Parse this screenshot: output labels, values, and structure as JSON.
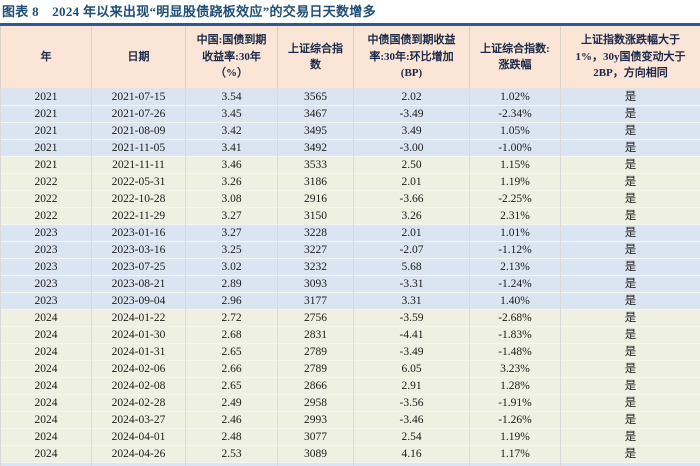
{
  "title": "图表 8　2024 年以来出现“明显股债跷板效应”的交易日天数增多",
  "colors": {
    "title_text": "#1F4E79",
    "divider_line": "#2E5A94",
    "header_bg": "#FBE5D6",
    "band_blue": "#DBE5F1",
    "band_green": "#EEF0E1"
  },
  "table": {
    "headers": [
      "年",
      "日期",
      "中国:国债到期\n收益率:30年\n（%）",
      "上证综合指\n数",
      "中债国债到期收益\n率:30年:环比增加\n(BP)",
      "上证综合指数:\n涨跌幅",
      "上证指数涨跌幅大于\n1%，30y国债变动大于\n2BP，方向相同"
    ],
    "rows": [
      {
        "band": "blue",
        "values": [
          "2021",
          "2021-07-15",
          "3.54",
          "3565",
          "2.02",
          "1.02%",
          "是"
        ]
      },
      {
        "band": "blue",
        "values": [
          "2021",
          "2021-07-26",
          "3.45",
          "3467",
          "-3.49",
          "-2.34%",
          "是"
        ]
      },
      {
        "band": "blue",
        "values": [
          "2021",
          "2021-08-09",
          "3.42",
          "3495",
          "3.49",
          "1.05%",
          "是"
        ]
      },
      {
        "band": "blue",
        "values": [
          "2021",
          "2021-11-05",
          "3.41",
          "3492",
          "-3.00",
          "-1.00%",
          "是"
        ]
      },
      {
        "band": "green",
        "values": [
          "2021",
          "2021-11-11",
          "3.46",
          "3533",
          "2.50",
          "1.15%",
          "是"
        ]
      },
      {
        "band": "green",
        "values": [
          "2022",
          "2022-05-31",
          "3.26",
          "3186",
          "2.01",
          "1.19%",
          "是"
        ]
      },
      {
        "band": "green",
        "values": [
          "2022",
          "2022-10-28",
          "3.08",
          "2916",
          "-3.66",
          "-2.25%",
          "是"
        ]
      },
      {
        "band": "green",
        "values": [
          "2022",
          "2022-11-29",
          "3.27",
          "3150",
          "3.26",
          "2.31%",
          "是"
        ]
      },
      {
        "band": "blue",
        "values": [
          "2023",
          "2023-01-16",
          "3.27",
          "3228",
          "2.01",
          "1.01%",
          "是"
        ]
      },
      {
        "band": "blue",
        "values": [
          "2023",
          "2023-03-16",
          "3.25",
          "3227",
          "-2.07",
          "-1.12%",
          "是"
        ]
      },
      {
        "band": "blue",
        "values": [
          "2023",
          "2023-07-25",
          "3.02",
          "3232",
          "5.68",
          "2.13%",
          "是"
        ]
      },
      {
        "band": "blue",
        "values": [
          "2023",
          "2023-08-21",
          "2.89",
          "3093",
          "-3.31",
          "-1.24%",
          "是"
        ]
      },
      {
        "band": "blue",
        "values": [
          "2023",
          "2023-09-04",
          "2.96",
          "3177",
          "3.31",
          "1.40%",
          "是"
        ]
      },
      {
        "band": "green",
        "values": [
          "2024",
          "2024-01-22",
          "2.72",
          "2756",
          "-3.59",
          "-2.68%",
          "是"
        ]
      },
      {
        "band": "green",
        "values": [
          "2024",
          "2024-01-30",
          "2.68",
          "2831",
          "-4.41",
          "-1.83%",
          "是"
        ]
      },
      {
        "band": "green",
        "values": [
          "2024",
          "2024-01-31",
          "2.65",
          "2789",
          "-3.49",
          "-1.48%",
          "是"
        ]
      },
      {
        "band": "green",
        "values": [
          "2024",
          "2024-02-06",
          "2.66",
          "2789",
          "6.05",
          "3.23%",
          "是"
        ]
      },
      {
        "band": "green",
        "values": [
          "2024",
          "2024-02-08",
          "2.65",
          "2866",
          "2.91",
          "1.28%",
          "是"
        ]
      },
      {
        "band": "green",
        "values": [
          "2024",
          "2024-02-28",
          "2.49",
          "2958",
          "-3.56",
          "-1.91%",
          "是"
        ]
      },
      {
        "band": "green",
        "values": [
          "2024",
          "2024-03-27",
          "2.46",
          "2993",
          "-3.46",
          "-1.26%",
          "是"
        ]
      },
      {
        "band": "green",
        "values": [
          "2024",
          "2024-04-01",
          "2.48",
          "3077",
          "2.54",
          "1.19%",
          "是"
        ]
      },
      {
        "band": "green",
        "values": [
          "2024",
          "2024-04-26",
          "2.53",
          "3089",
          "4.16",
          "1.17%",
          "是"
        ]
      }
    ],
    "partial_row_band": "blue"
  }
}
